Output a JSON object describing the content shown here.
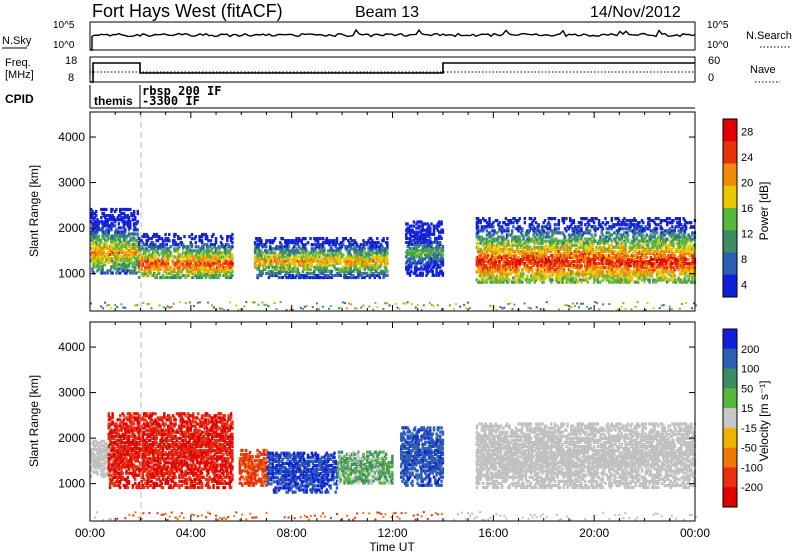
{
  "header": {
    "site": "Fort Hays West (fitACF)",
    "beam": "Beam 13",
    "date": "14/Nov/2012"
  },
  "noise_panel": {
    "left_label": "N.Sky",
    "left_ticks": [
      "10^5",
      "10^0"
    ],
    "right_label": "N.Search",
    "right_ticks": [
      "10^5",
      "10^0"
    ]
  },
  "freq_panel": {
    "left_label_1": "Freq.",
    "left_label_2": "[MHz]",
    "left_ticks": [
      "18",
      "8"
    ],
    "right_label": "Nave",
    "right_ticks": [
      "60",
      "0"
    ]
  },
  "cpid": {
    "label": "CPID",
    "programs": [
      "themis",
      "rbsp 200 IF",
      "-3300 IF"
    ]
  },
  "colors": {
    "scale": [
      "#1020d8",
      "#2c5fb0",
      "#3c8c64",
      "#56b83e",
      "#e8c800",
      "#f08a08",
      "#e8300a",
      "#e00000"
    ],
    "velocity": [
      "#1020d8",
      "#2c5fb0",
      "#3c8c64",
      "#56b83e",
      "#c8c8c8",
      "#f0b400",
      "#f07808",
      "#e83010",
      "#e00000"
    ],
    "ground": "#c0c0c0"
  },
  "chart_data": [
    {
      "type": "heatmap",
      "title": "Power",
      "xlabel": "Time UT",
      "ylabel": "Slant Range [km]",
      "x_ticks": [
        "00:00",
        "04:00",
        "08:00",
        "12:00",
        "16:00",
        "20:00",
        "00:00"
      ],
      "xlim_hours": [
        0,
        24
      ],
      "y_ticks": [
        1000,
        2000,
        3000,
        4000
      ],
      "ylim": [
        180,
        4550
      ],
      "colorbar": {
        "label": "Power [dB]",
        "ticks": [
          "28",
          "24",
          "20",
          "16",
          "12",
          "8",
          "4"
        ],
        "range": [
          0,
          30
        ]
      },
      "features": [
        {
          "t": [
            0.0,
            1.9
          ],
          "range": [
            1050,
            2450
          ],
          "peak": 1500,
          "level": 20
        },
        {
          "t": [
            1.9,
            5.6
          ],
          "range": [
            950,
            1900
          ],
          "peak": 1250,
          "level": 24
        },
        {
          "t": [
            6.5,
            11.8
          ],
          "range": [
            950,
            1850
          ],
          "peak": 1300,
          "level": 20
        },
        {
          "t": [
            12.5,
            14.0
          ],
          "range": [
            1000,
            2200
          ],
          "peak": 1500,
          "level": 12
        },
        {
          "t": [
            15.3,
            24.0
          ],
          "range": [
            850,
            2250
          ],
          "peak": 1300,
          "level": 26
        }
      ]
    },
    {
      "type": "heatmap",
      "title": "Velocity",
      "xlabel": "Time UT",
      "ylabel": "Slant Range [km]",
      "x_ticks": [
        "00:00",
        "04:00",
        "08:00",
        "12:00",
        "16:00",
        "20:00",
        "00:00"
      ],
      "xlim_hours": [
        0,
        24
      ],
      "y_ticks": [
        1000,
        2000,
        3000,
        4000
      ],
      "ylim": [
        180,
        4550
      ],
      "colorbar": {
        "label": "Velocity [m s⁻¹]",
        "ticks": [
          "200",
          "100",
          "50",
          "15",
          "-15",
          "-50",
          "-100",
          "-200"
        ],
        "range": [
          -250,
          250
        ]
      },
      "features": [
        {
          "t": [
            0.0,
            1.0
          ],
          "range": [
            1200,
            2000
          ],
          "velocity": 0,
          "ground": true
        },
        {
          "t": [
            0.7,
            5.6
          ],
          "range": [
            950,
            2600
          ],
          "velocity": -200
        },
        {
          "t": [
            5.9,
            7.0
          ],
          "range": [
            1000,
            1800
          ],
          "velocity": -120
        },
        {
          "t": [
            7.0,
            9.8
          ],
          "range": [
            850,
            1750
          ],
          "velocity": 200
        },
        {
          "t": [
            9.8,
            12.0
          ],
          "range": [
            1050,
            1750
          ],
          "velocity": 40
        },
        {
          "t": [
            12.3,
            14.0
          ],
          "range": [
            1000,
            2300
          ],
          "velocity": 180
        },
        {
          "t": [
            15.3,
            24.0
          ],
          "range": [
            950,
            2350
          ],
          "velocity": 0,
          "ground": true
        }
      ]
    }
  ]
}
